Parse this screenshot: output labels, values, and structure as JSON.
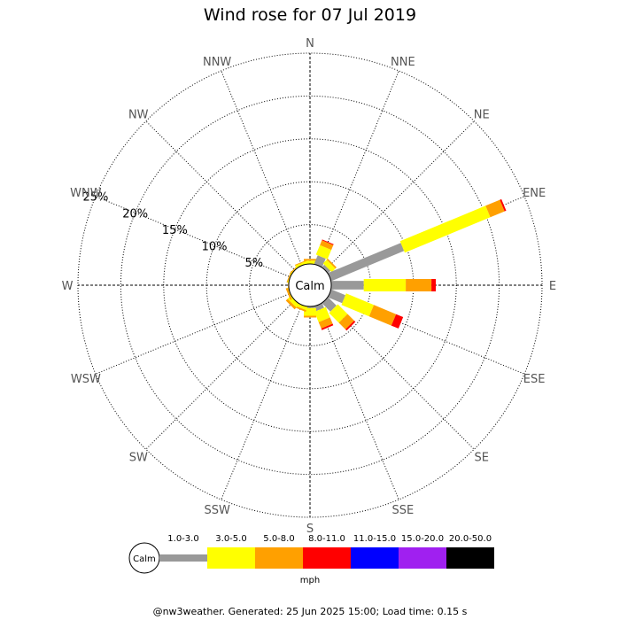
{
  "chart_data": {
    "type": "wind-rose",
    "title": "Wind rose for 07 Jul 2019",
    "calm_label": "Calm",
    "unit": "mph",
    "radial_ticks": [
      5,
      10,
      15,
      20,
      25
    ],
    "radial_tick_labels": [
      "5%",
      "10%",
      "15%",
      "20%",
      "25%"
    ],
    "radial_max": 25,
    "directions": [
      "N",
      "NNE",
      "NE",
      "ENE",
      "E",
      "ESE",
      "SE",
      "SSE",
      "S",
      "SSW",
      "SW",
      "WSW",
      "W",
      "WNW",
      "NW",
      "NNW"
    ],
    "bins": [
      {
        "label": "1.0-3.0",
        "color": "#999999"
      },
      {
        "label": "3.0-5.0",
        "color": "#ffff00"
      },
      {
        "label": "5.0-8.0",
        "color": "#ffa000"
      },
      {
        "label": "8.0-11.0",
        "color": "#ff0000"
      },
      {
        "label": "11.0-15.0",
        "color": "#0000ff"
      },
      {
        "label": "15.0-20.0",
        "color": "#a020f0"
      },
      {
        "label": "20.0-50.0",
        "color": "#000000"
      }
    ],
    "values": [
      [
        0.4,
        0.4,
        0.2,
        0,
        0,
        0,
        0
      ],
      [
        1.5,
        1.2,
        0.6,
        0.1,
        0,
        0,
        0
      ],
      [
        0.8,
        0.6,
        0.2,
        0,
        0,
        0,
        0
      ],
      [
        9.6,
        10.8,
        1.8,
        0.2,
        0,
        0,
        0
      ],
      [
        4.2,
        4.9,
        3.0,
        0.5,
        0,
        0,
        0
      ],
      [
        2.2,
        3.5,
        2.8,
        0.9,
        0,
        0,
        0
      ],
      [
        1.8,
        1.6,
        1.1,
        0.2,
        0,
        0,
        0
      ],
      [
        1.0,
        1.3,
        0.8,
        0.2,
        0,
        0,
        0
      ],
      [
        0.6,
        0.9,
        0.2,
        0,
        0,
        0,
        0
      ],
      [
        0.3,
        0.5,
        0.2,
        0,
        0,
        0,
        0
      ],
      [
        0.3,
        0.6,
        0.3,
        0,
        0,
        0,
        0
      ],
      [
        0.2,
        0.3,
        0.2,
        0,
        0,
        0,
        0
      ],
      [
        0.2,
        0.2,
        0.1,
        0,
        0,
        0,
        0
      ],
      [
        0.3,
        0.2,
        0.1,
        0,
        0,
        0,
        0
      ],
      [
        0.3,
        0.2,
        0.1,
        0,
        0,
        0,
        0
      ],
      [
        0.4,
        0.3,
        0.1,
        0,
        0,
        0,
        0
      ]
    ]
  },
  "footer": "@nw3weather. Generated: 25 Jun 2025 15:00; Load time: 0.15 s"
}
